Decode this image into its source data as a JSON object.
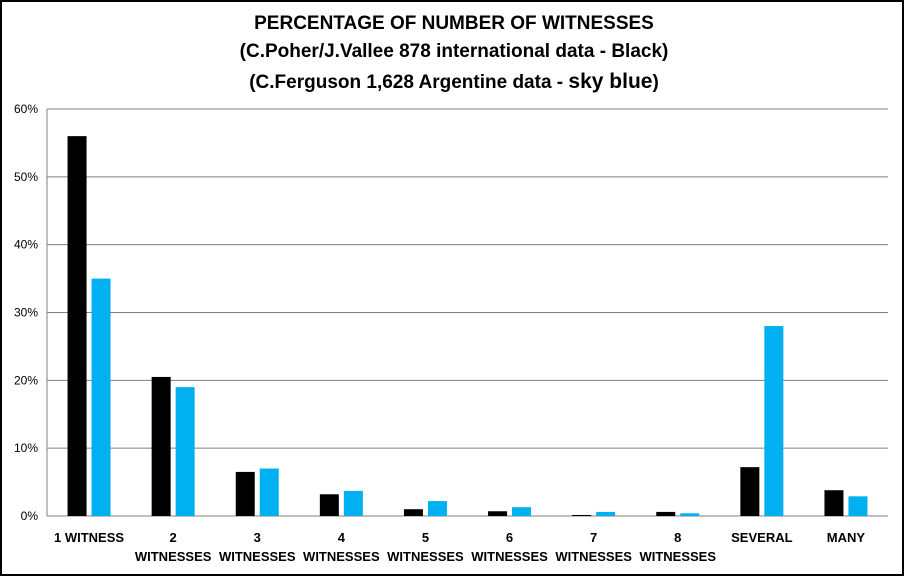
{
  "chart_data": {
    "type": "bar",
    "title_lines": [
      "PERCENTAGE OF NUMBER OF WITNESSES",
      "(C.Poher/J.Vallee 878 international data - Black)"
    ],
    "title_line3_prefix": "(C.Ferguson 1,628 Argentine data - ",
    "title_line3_emph": "sky blue",
    "title_line3_suffix": ")",
    "categories": [
      [
        "1 WITNESS"
      ],
      [
        "2",
        "WITNESSES"
      ],
      [
        "3",
        "WITNESSES"
      ],
      [
        "4",
        "WITNESSES"
      ],
      [
        "5",
        "WITNESSES"
      ],
      [
        "6",
        "WITNESSES"
      ],
      [
        "7",
        "WITNESSES"
      ],
      [
        "8",
        "WITNESSES"
      ],
      [
        "SEVERAL"
      ],
      [
        "MANY"
      ]
    ],
    "series": [
      {
        "color": "#000000",
        "values": [
          56,
          20.5,
          6.5,
          3.2,
          1.0,
          0.7,
          0.15,
          0.6,
          7.2,
          3.8
        ]
      },
      {
        "color": "#00B0F0",
        "values": [
          35,
          19,
          7,
          3.7,
          2.2,
          1.3,
          0.6,
          0.4,
          28,
          2.9
        ]
      }
    ],
    "yticks": [
      0,
      10,
      20,
      30,
      40,
      50,
      60
    ],
    "ytick_labels": [
      "0%",
      "10%",
      "20%",
      "30%",
      "40%",
      "50%",
      "60%"
    ],
    "ylim": [
      0,
      60
    ],
    "grid": true,
    "gridline_color": "#808080"
  }
}
